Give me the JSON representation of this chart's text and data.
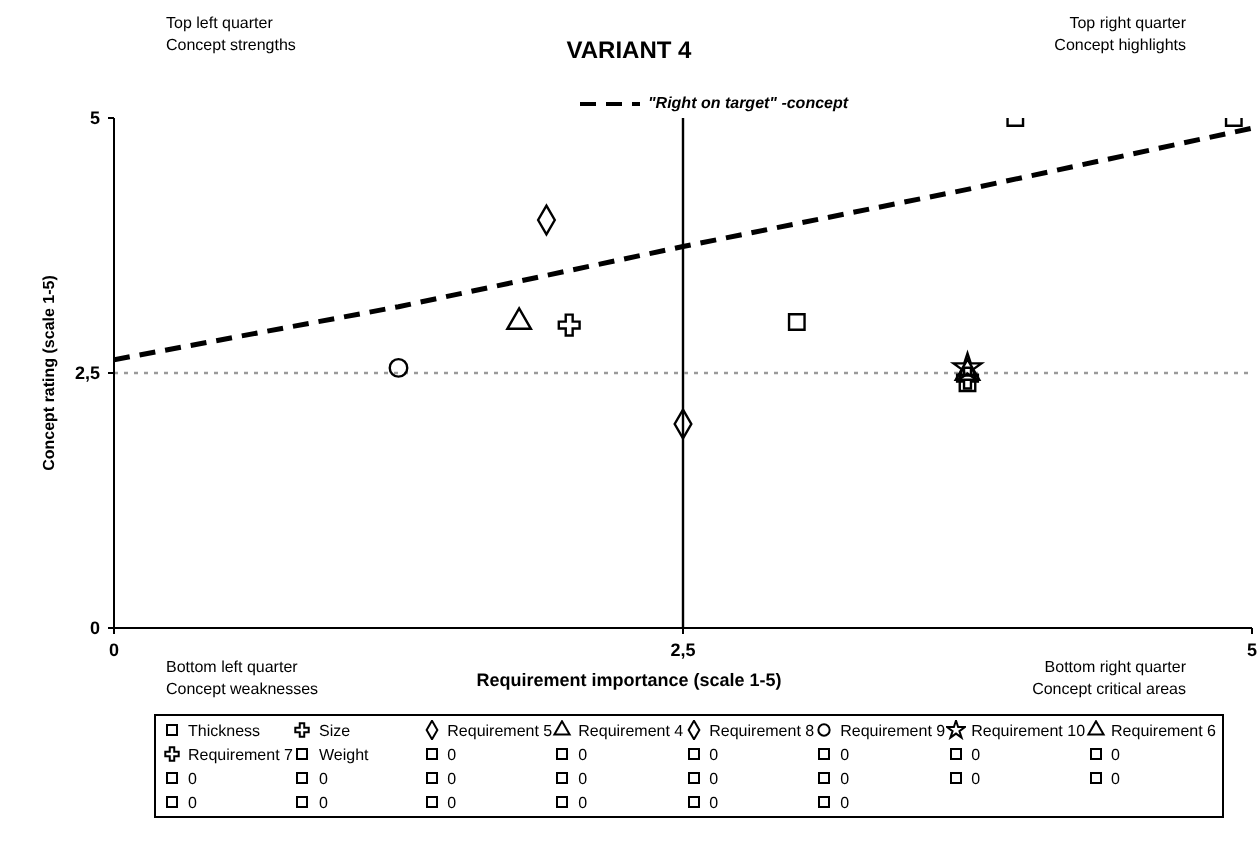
{
  "chart_data": {
    "type": "scatter",
    "title": "VARIANT 4",
    "xlabel": "Requirement importance (scale 1-5)",
    "ylabel": "Concept rating (scale 1-5)",
    "annotations": [
      "Top left quarter\nConcept strengths",
      "Top right quarter\nConcept highlights",
      "Bottom left quarter\nConcept weaknesses",
      "Bottom right quarter\nConcept critical areas"
    ],
    "xlim": [
      0,
      5
    ],
    "ylim": [
      0,
      5
    ],
    "xticks": [
      0,
      {
        "value": 2.5,
        "label": "2,5"
      },
      5
    ],
    "yticks": [
      0,
      {
        "value": 2.5,
        "label": "2,5"
      },
      5
    ],
    "grid": false,
    "legend": "bottom",
    "ref_lines": [
      {
        "axis": "x",
        "value": 2.5,
        "color": "#000000",
        "line_style": "solid"
      },
      {
        "axis": "y",
        "value": 2.5,
        "color": "#9a9a9a",
        "line_style": "dotted"
      }
    ],
    "series": [
      {
        "name": "\"Right on target\" -concept",
        "type": "line",
        "color": "#000000",
        "line_style": "dashed",
        "marker": "none",
        "x": [
          0,
          1.25,
          2.5,
          3.75,
          5
        ],
        "values": [
          2.63,
          3.15,
          3.74,
          4.3,
          4.9
        ]
      },
      {
        "name": "Thickness",
        "color": "#000000",
        "marker": "square",
        "x": [
          3.0
        ],
        "values": [
          3.0
        ]
      },
      {
        "name": "Size",
        "color": "#000000",
        "marker": "cross",
        "x": [
          2.0
        ],
        "values": [
          2.97
        ]
      },
      {
        "name": "Requirement 5",
        "color": "#000000",
        "marker": "diamond",
        "x": [
          1.9
        ],
        "values": [
          4.0
        ]
      },
      {
        "name": "Requirement 4",
        "color": "#000000",
        "marker": "triangle",
        "x": [
          1.78
        ],
        "values": [
          3.0
        ]
      },
      {
        "name": "Requirement 8",
        "color": "#000000",
        "marker": "diamond",
        "x": [
          2.5
        ],
        "values": [
          2.0
        ]
      },
      {
        "name": "Requirement 9",
        "color": "#000000",
        "marker": "circle",
        "x": [
          1.25
        ],
        "values": [
          2.55
        ]
      },
      {
        "name": "Requirement 10",
        "color": "#000000",
        "marker": "star",
        "x": [
          3.75
        ],
        "values": [
          2.55
        ]
      },
      {
        "name": "Requirement 6",
        "color": "#000000",
        "marker": "triangle",
        "x": [
          3.75
        ],
        "values": [
          2.5
        ]
      },
      {
        "name": "Requirement 7",
        "color": "#000000",
        "marker": "cross",
        "x": [
          3.75
        ],
        "values": [
          2.45
        ]
      },
      {
        "name": "Weight",
        "color": "#000000",
        "marker": "square",
        "x": [
          3.75
        ],
        "values": [
          2.4
        ]
      },
      {
        "name": "0",
        "color": "#000000",
        "marker": "square",
        "x": [
          3.96
        ],
        "values": [
          5
        ]
      },
      {
        "name": "0",
        "color": "#000000",
        "marker": "square",
        "x": [
          4.92
        ],
        "values": [
          5
        ]
      },
      {
        "name": "0",
        "color": "#000000",
        "marker": "square"
      },
      {
        "name": "0",
        "color": "#000000",
        "marker": "square"
      },
      {
        "name": "0",
        "color": "#000000",
        "marker": "square"
      },
      {
        "name": "0",
        "color": "#000000",
        "marker": "square"
      },
      {
        "name": "0",
        "color": "#000000",
        "marker": "square"
      },
      {
        "name": "0",
        "color": "#000000",
        "marker": "square"
      },
      {
        "name": "0",
        "color": "#000000",
        "marker": "square"
      },
      {
        "name": "0",
        "color": "#000000",
        "marker": "square"
      },
      {
        "name": "0",
        "color": "#000000",
        "marker": "square"
      },
      {
        "name": "0",
        "color": "#000000",
        "marker": "square"
      },
      {
        "name": "0",
        "color": "#000000",
        "marker": "square"
      },
      {
        "name": "0",
        "color": "#000000",
        "marker": "square"
      },
      {
        "name": "0",
        "color": "#000000",
        "marker": "square"
      },
      {
        "name": "0",
        "color": "#000000",
        "marker": "square"
      },
      {
        "name": "0",
        "color": "#000000",
        "marker": "square"
      },
      {
        "name": "0",
        "color": "#000000",
        "marker": "square"
      },
      {
        "name": "0",
        "color": "#000000",
        "marker": "square"
      },
      {
        "name": "0",
        "color": "#000000",
        "marker": "square"
      }
    ]
  }
}
